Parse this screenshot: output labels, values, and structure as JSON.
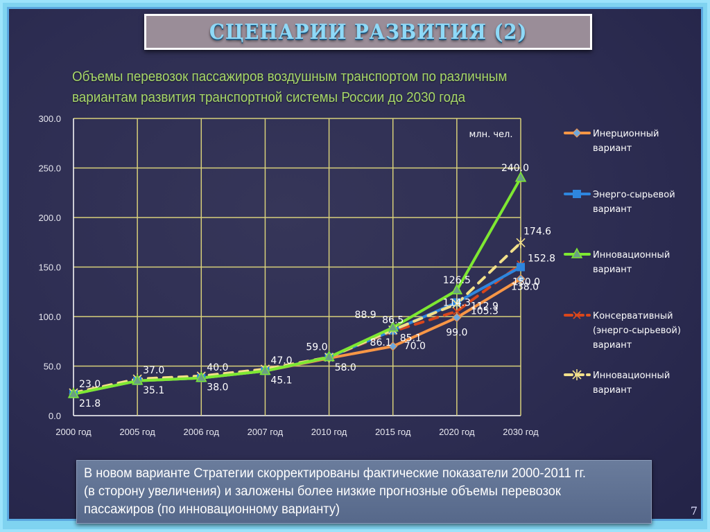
{
  "slide": {
    "title": "СЦЕНАРИИ РАЗВИТИЯ (2)",
    "subtitle_line1": "Объемы перевозок пассажиров воздушным транспортом по различным",
    "subtitle_line2": "вариантам развития транспортной системы России до 2030 года",
    "note_line1": "В новом варианте Стратегии скорректированы фактические показатели 2000-2011 гг.",
    "note_line2": "(в сторону увеличения) и заложены более низкие прогнозные объемы перевозок",
    "note_line3": "пассажиров (по инновационному варианту)",
    "page_number": "7"
  },
  "chart_data": {
    "type": "line",
    "title": "Объемы перевозок пассажиров воздушным транспортом по различным вариантам развития транспортной системы России до 2030 года",
    "unit_label": "млн. чел.",
    "xlabel": "",
    "ylabel": "",
    "categories": [
      "2000 год",
      "2005 год",
      "2006 год",
      "2007 год",
      "2010 год",
      "2015 год",
      "2020 год",
      "2030 год"
    ],
    "ylim": [
      0,
      300
    ],
    "yticks": [
      "0.0",
      "50.0",
      "100.0",
      "150.0",
      "200.0",
      "250.0",
      "300.0"
    ],
    "grid": true,
    "legend_position": "right",
    "series": [
      {
        "name": "Инерционный вариант",
        "legend_lines": [
          "Инерционный",
          "вариант"
        ],
        "color": "#f79646",
        "dash": false,
        "marker": "diamond",
        "values": [
          21.8,
          35.1,
          38.0,
          45.1,
          58.0,
          70.0,
          99.0,
          138.0
        ]
      },
      {
        "name": "Энерго-сырьевой вариант",
        "legend_lines": [
          "Энерго-сырьевой",
          "вариант"
        ],
        "color": "#2e86de",
        "dash": false,
        "marker": "square",
        "values": [
          21.8,
          35.1,
          38.0,
          45.1,
          59.0,
          86.1,
          114.3,
          150.0
        ]
      },
      {
        "name": "Инновационный вариант",
        "legend_lines": [
          "Инновационный",
          "вариант"
        ],
        "color": "#7ee832",
        "dash": false,
        "marker": "triangle",
        "values": [
          21.8,
          35.1,
          38.0,
          45.1,
          59.0,
          88.9,
          126.5,
          240.0
        ]
      },
      {
        "name": "Консервативный (энерго-сырьевой) вариант",
        "legend_lines": [
          "Консервативный",
          "(энерго-сырьевой)",
          "вариант"
        ],
        "color": "#d9461b",
        "dash": true,
        "marker": "x",
        "values": [
          23.0,
          37.0,
          40.0,
          47.0,
          59.0,
          85.1,
          105.3,
          152.8
        ]
      },
      {
        "name": "Инновационный вариант (новый)",
        "legend_lines": [
          "Инновационный",
          "вариант"
        ],
        "color": "#f2e08a",
        "dash": true,
        "marker": "star",
        "values": [
          23.0,
          37.0,
          40.0,
          47.0,
          59.0,
          86.5,
          112.9,
          174.6
        ]
      }
    ],
    "data_labels": [
      {
        "text": "23.0",
        "cat": 0,
        "value": 23.0,
        "pos": "above-right"
      },
      {
        "text": "21.8",
        "cat": 0,
        "value": 21.8,
        "pos": "below-right"
      },
      {
        "text": "37.0",
        "cat": 1,
        "value": 37.0,
        "pos": "above-right"
      },
      {
        "text": "35.1",
        "cat": 1,
        "value": 35.1,
        "pos": "below-right"
      },
      {
        "text": "40.0",
        "cat": 2,
        "value": 40.0,
        "pos": "above-right"
      },
      {
        "text": "38.0",
        "cat": 2,
        "value": 38.0,
        "pos": "below-right"
      },
      {
        "text": "47.0",
        "cat": 3,
        "value": 47.0,
        "pos": "above-right"
      },
      {
        "text": "45.1",
        "cat": 3,
        "value": 45.1,
        "pos": "below-right"
      },
      {
        "text": "59.0",
        "cat": 4,
        "value": 59.0,
        "pos": "above-left"
      },
      {
        "text": "58.0",
        "cat": 4,
        "value": 58.0,
        "pos": "below-right"
      },
      {
        "text": "88.9",
        "cat": 5,
        "value": 88.9,
        "pos": "above-left-far"
      },
      {
        "text": "86.5",
        "cat": 5,
        "value": 86.5,
        "pos": "above"
      },
      {
        "text": "85.1",
        "cat": 5,
        "value": 85.1,
        "pos": "right"
      },
      {
        "text": "86.1",
        "cat": 5,
        "value": 86.1,
        "pos": "below-left"
      },
      {
        "text": "70.0",
        "cat": 5,
        "value": 70.0,
        "pos": "below-right"
      },
      {
        "text": "126.5",
        "cat": 6,
        "value": 126.5,
        "pos": "above"
      },
      {
        "text": "114.3",
        "cat": 6,
        "value": 114.3,
        "pos": "left"
      },
      {
        "text": "112.9",
        "cat": 6,
        "value": 112.9,
        "pos": "right"
      },
      {
        "text": "105.3",
        "cat": 6,
        "value": 105.3,
        "pos": "right-below"
      },
      {
        "text": "99.0",
        "cat": 6,
        "value": 99.0,
        "pos": "below"
      },
      {
        "text": "240.0",
        "cat": 7,
        "value": 240.0,
        "pos": "above"
      },
      {
        "text": "174.6",
        "cat": 7,
        "value": 174.6,
        "pos": "above-right"
      },
      {
        "text": "152.8",
        "cat": 7,
        "value": 152.8,
        "pos": "right"
      },
      {
        "text": "150.0",
        "cat": 7,
        "value": 150.0,
        "pos": "below"
      },
      {
        "text": "138.0",
        "cat": 7,
        "value": 138.0,
        "pos": "below-far"
      }
    ]
  }
}
